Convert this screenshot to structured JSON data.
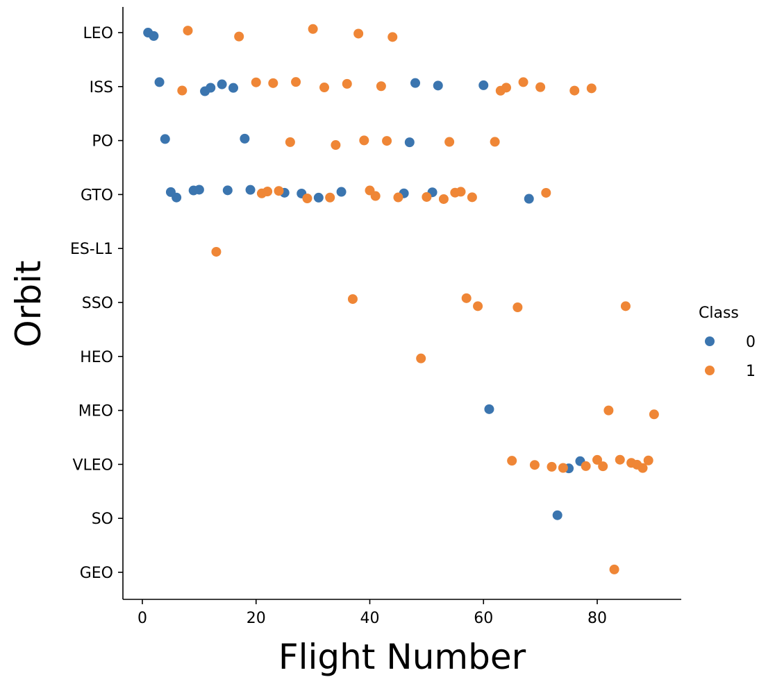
{
  "chart_data": {
    "type": "scatter",
    "xlabel": "Flight Number",
    "ylabel": "Orbit",
    "xlim": [
      -3,
      95
    ],
    "xticks": [
      0,
      20,
      40,
      60,
      80
    ],
    "categories": [
      "LEO",
      "ISS",
      "PO",
      "GTO",
      "ES-L1",
      "SSO",
      "HEO",
      "MEO",
      "VLEO",
      "SO",
      "GEO"
    ],
    "grid": false,
    "legend": {
      "title": "Class",
      "placement": "right",
      "entries": [
        {
          "label": "0",
          "color": "#3b75af"
        },
        {
          "label": "1",
          "color": "#ef8636"
        }
      ]
    },
    "series": [
      {
        "name": "0",
        "color": "#3b75af",
        "points": [
          {
            "x": 1,
            "y": "LEO"
          },
          {
            "x": 2,
            "y": "LEO"
          },
          {
            "x": 3,
            "y": "ISS"
          },
          {
            "x": 11,
            "y": "ISS"
          },
          {
            "x": 12,
            "y": "ISS"
          },
          {
            "x": 14,
            "y": "ISS"
          },
          {
            "x": 16,
            "y": "ISS"
          },
          {
            "x": 48,
            "y": "ISS"
          },
          {
            "x": 52,
            "y": "ISS"
          },
          {
            "x": 60,
            "y": "ISS"
          },
          {
            "x": 4,
            "y": "PO"
          },
          {
            "x": 18,
            "y": "PO"
          },
          {
            "x": 47,
            "y": "PO"
          },
          {
            "x": 5,
            "y": "GTO"
          },
          {
            "x": 6,
            "y": "GTO"
          },
          {
            "x": 9,
            "y": "GTO"
          },
          {
            "x": 10,
            "y": "GTO"
          },
          {
            "x": 15,
            "y": "GTO"
          },
          {
            "x": 19,
            "y": "GTO"
          },
          {
            "x": 25,
            "y": "GTO"
          },
          {
            "x": 28,
            "y": "GTO"
          },
          {
            "x": 31,
            "y": "GTO"
          },
          {
            "x": 35,
            "y": "GTO"
          },
          {
            "x": 46,
            "y": "GTO"
          },
          {
            "x": 51,
            "y": "GTO"
          },
          {
            "x": 68,
            "y": "GTO"
          },
          {
            "x": 61,
            "y": "MEO"
          },
          {
            "x": 75,
            "y": "VLEO"
          },
          {
            "x": 77,
            "y": "VLEO"
          },
          {
            "x": 73,
            "y": "SO"
          }
        ]
      },
      {
        "name": "1",
        "color": "#ef8636",
        "points": [
          {
            "x": 8,
            "y": "LEO"
          },
          {
            "x": 17,
            "y": "LEO"
          },
          {
            "x": 30,
            "y": "LEO"
          },
          {
            "x": 38,
            "y": "LEO"
          },
          {
            "x": 44,
            "y": "LEO"
          },
          {
            "x": 7,
            "y": "ISS"
          },
          {
            "x": 20,
            "y": "ISS"
          },
          {
            "x": 23,
            "y": "ISS"
          },
          {
            "x": 27,
            "y": "ISS"
          },
          {
            "x": 32,
            "y": "ISS"
          },
          {
            "x": 36,
            "y": "ISS"
          },
          {
            "x": 42,
            "y": "ISS"
          },
          {
            "x": 63,
            "y": "ISS"
          },
          {
            "x": 64,
            "y": "ISS"
          },
          {
            "x": 67,
            "y": "ISS"
          },
          {
            "x": 70,
            "y": "ISS"
          },
          {
            "x": 76,
            "y": "ISS"
          },
          {
            "x": 79,
            "y": "ISS"
          },
          {
            "x": 26,
            "y": "PO"
          },
          {
            "x": 34,
            "y": "PO"
          },
          {
            "x": 39,
            "y": "PO"
          },
          {
            "x": 43,
            "y": "PO"
          },
          {
            "x": 54,
            "y": "PO"
          },
          {
            "x": 62,
            "y": "PO"
          },
          {
            "x": 21,
            "y": "GTO"
          },
          {
            "x": 22,
            "y": "GTO"
          },
          {
            "x": 24,
            "y": "GTO"
          },
          {
            "x": 29,
            "y": "GTO"
          },
          {
            "x": 33,
            "y": "GTO"
          },
          {
            "x": 40,
            "y": "GTO"
          },
          {
            "x": 41,
            "y": "GTO"
          },
          {
            "x": 45,
            "y": "GTO"
          },
          {
            "x": 50,
            "y": "GTO"
          },
          {
            "x": 53,
            "y": "GTO"
          },
          {
            "x": 55,
            "y": "GTO"
          },
          {
            "x": 56,
            "y": "GTO"
          },
          {
            "x": 58,
            "y": "GTO"
          },
          {
            "x": 71,
            "y": "GTO"
          },
          {
            "x": 13,
            "y": "ES-L1"
          },
          {
            "x": 37,
            "y": "SSO"
          },
          {
            "x": 57,
            "y": "SSO"
          },
          {
            "x": 59,
            "y": "SSO"
          },
          {
            "x": 66,
            "y": "SSO"
          },
          {
            "x": 85,
            "y": "SSO"
          },
          {
            "x": 49,
            "y": "HEO"
          },
          {
            "x": 82,
            "y": "MEO"
          },
          {
            "x": 90,
            "y": "MEO"
          },
          {
            "x": 65,
            "y": "VLEO"
          },
          {
            "x": 69,
            "y": "VLEO"
          },
          {
            "x": 72,
            "y": "VLEO"
          },
          {
            "x": 74,
            "y": "VLEO"
          },
          {
            "x": 78,
            "y": "VLEO"
          },
          {
            "x": 80,
            "y": "VLEO"
          },
          {
            "x": 81,
            "y": "VLEO"
          },
          {
            "x": 84,
            "y": "VLEO"
          },
          {
            "x": 86,
            "y": "VLEO"
          },
          {
            "x": 87,
            "y": "VLEO"
          },
          {
            "x": 88,
            "y": "VLEO"
          },
          {
            "x": 89,
            "y": "VLEO"
          },
          {
            "x": 83,
            "y": "GEO"
          }
        ]
      }
    ]
  }
}
